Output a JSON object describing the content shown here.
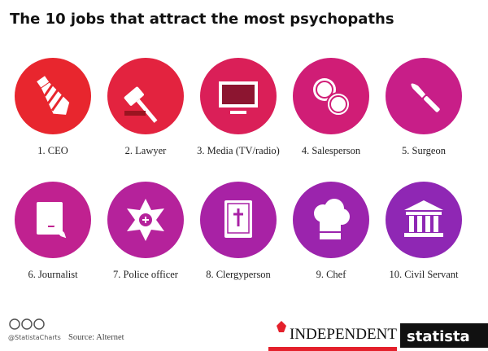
{
  "header": {
    "title": "The 10 jobs that attract the most psychopaths"
  },
  "items": [
    {
      "label": "1. CEO",
      "color": "#e8262e"
    },
    {
      "label": "2. Lawyer",
      "color": "#e3233f"
    },
    {
      "label": "3. Media (TV/radio)",
      "color": "#da1f58"
    },
    {
      "label": "4. Salesperson",
      "color": "#d01d76"
    },
    {
      "label": "5. Surgeon",
      "color": "#c81e88"
    },
    {
      "label": "6. Journalist",
      "color": "#c02190"
    },
    {
      "label": "7. Police officer",
      "color": "#b5229b"
    },
    {
      "label": "8. Clergyperson",
      "color": "#a822a5"
    },
    {
      "label": "9. Chef",
      "color": "#9b24ad"
    },
    {
      "label": "10. Civil Servant",
      "color": "#8f27b4"
    }
  ],
  "footer": {
    "handle": "@StatistaCharts",
    "source": "Source: Alternet",
    "partner": "INDEPENDENT",
    "brand": "statista"
  }
}
